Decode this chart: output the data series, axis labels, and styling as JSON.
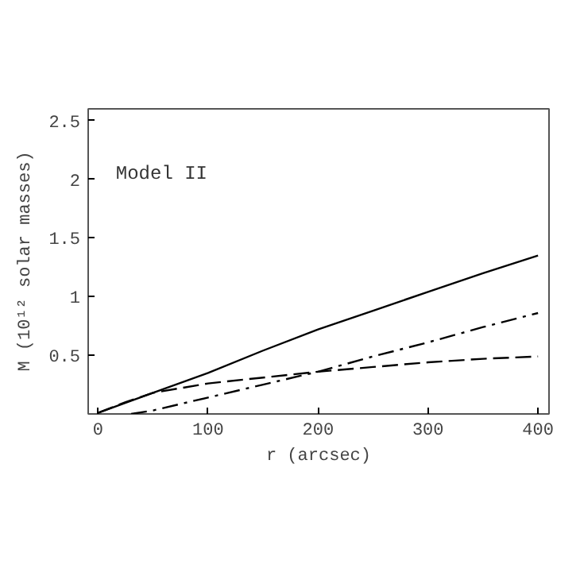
{
  "chart_data": {
    "type": "line",
    "xlabel": "r (arcsec)",
    "ylabel": "M (10¹² solar masses)",
    "annotations": [
      "Model II"
    ],
    "xlim": [
      -9,
      410
    ],
    "ylim": [
      0,
      2.6
    ],
    "xticks": [
      0,
      100,
      200,
      300,
      400
    ],
    "yticks": [
      0.5,
      1,
      1.5,
      2,
      2.5
    ],
    "grid": false,
    "marker": "none",
    "series": [
      {
        "color": "#000000",
        "line_style": "solid",
        "x": [
          0,
          50,
          100,
          150,
          200,
          250,
          300,
          350,
          400
        ],
        "values": [
          0.01,
          0.18,
          0.35,
          0.54,
          0.72,
          0.88,
          1.04,
          1.2,
          1.35
        ]
      },
      {
        "color": "#000000",
        "line_style": "dashed",
        "x": [
          0,
          25,
          50,
          100,
          150,
          200,
          250,
          300,
          350,
          400
        ],
        "values": [
          0.01,
          0.1,
          0.18,
          0.26,
          0.31,
          0.36,
          0.4,
          0.44,
          0.47,
          0.49
        ]
      },
      {
        "color": "#000000",
        "line_style": "dashdot",
        "x": [
          30,
          50,
          100,
          150,
          200,
          250,
          300,
          350,
          400
        ],
        "values": [
          0.0,
          0.03,
          0.14,
          0.25,
          0.36,
          0.49,
          0.61,
          0.74,
          0.86
        ]
      }
    ]
  }
}
